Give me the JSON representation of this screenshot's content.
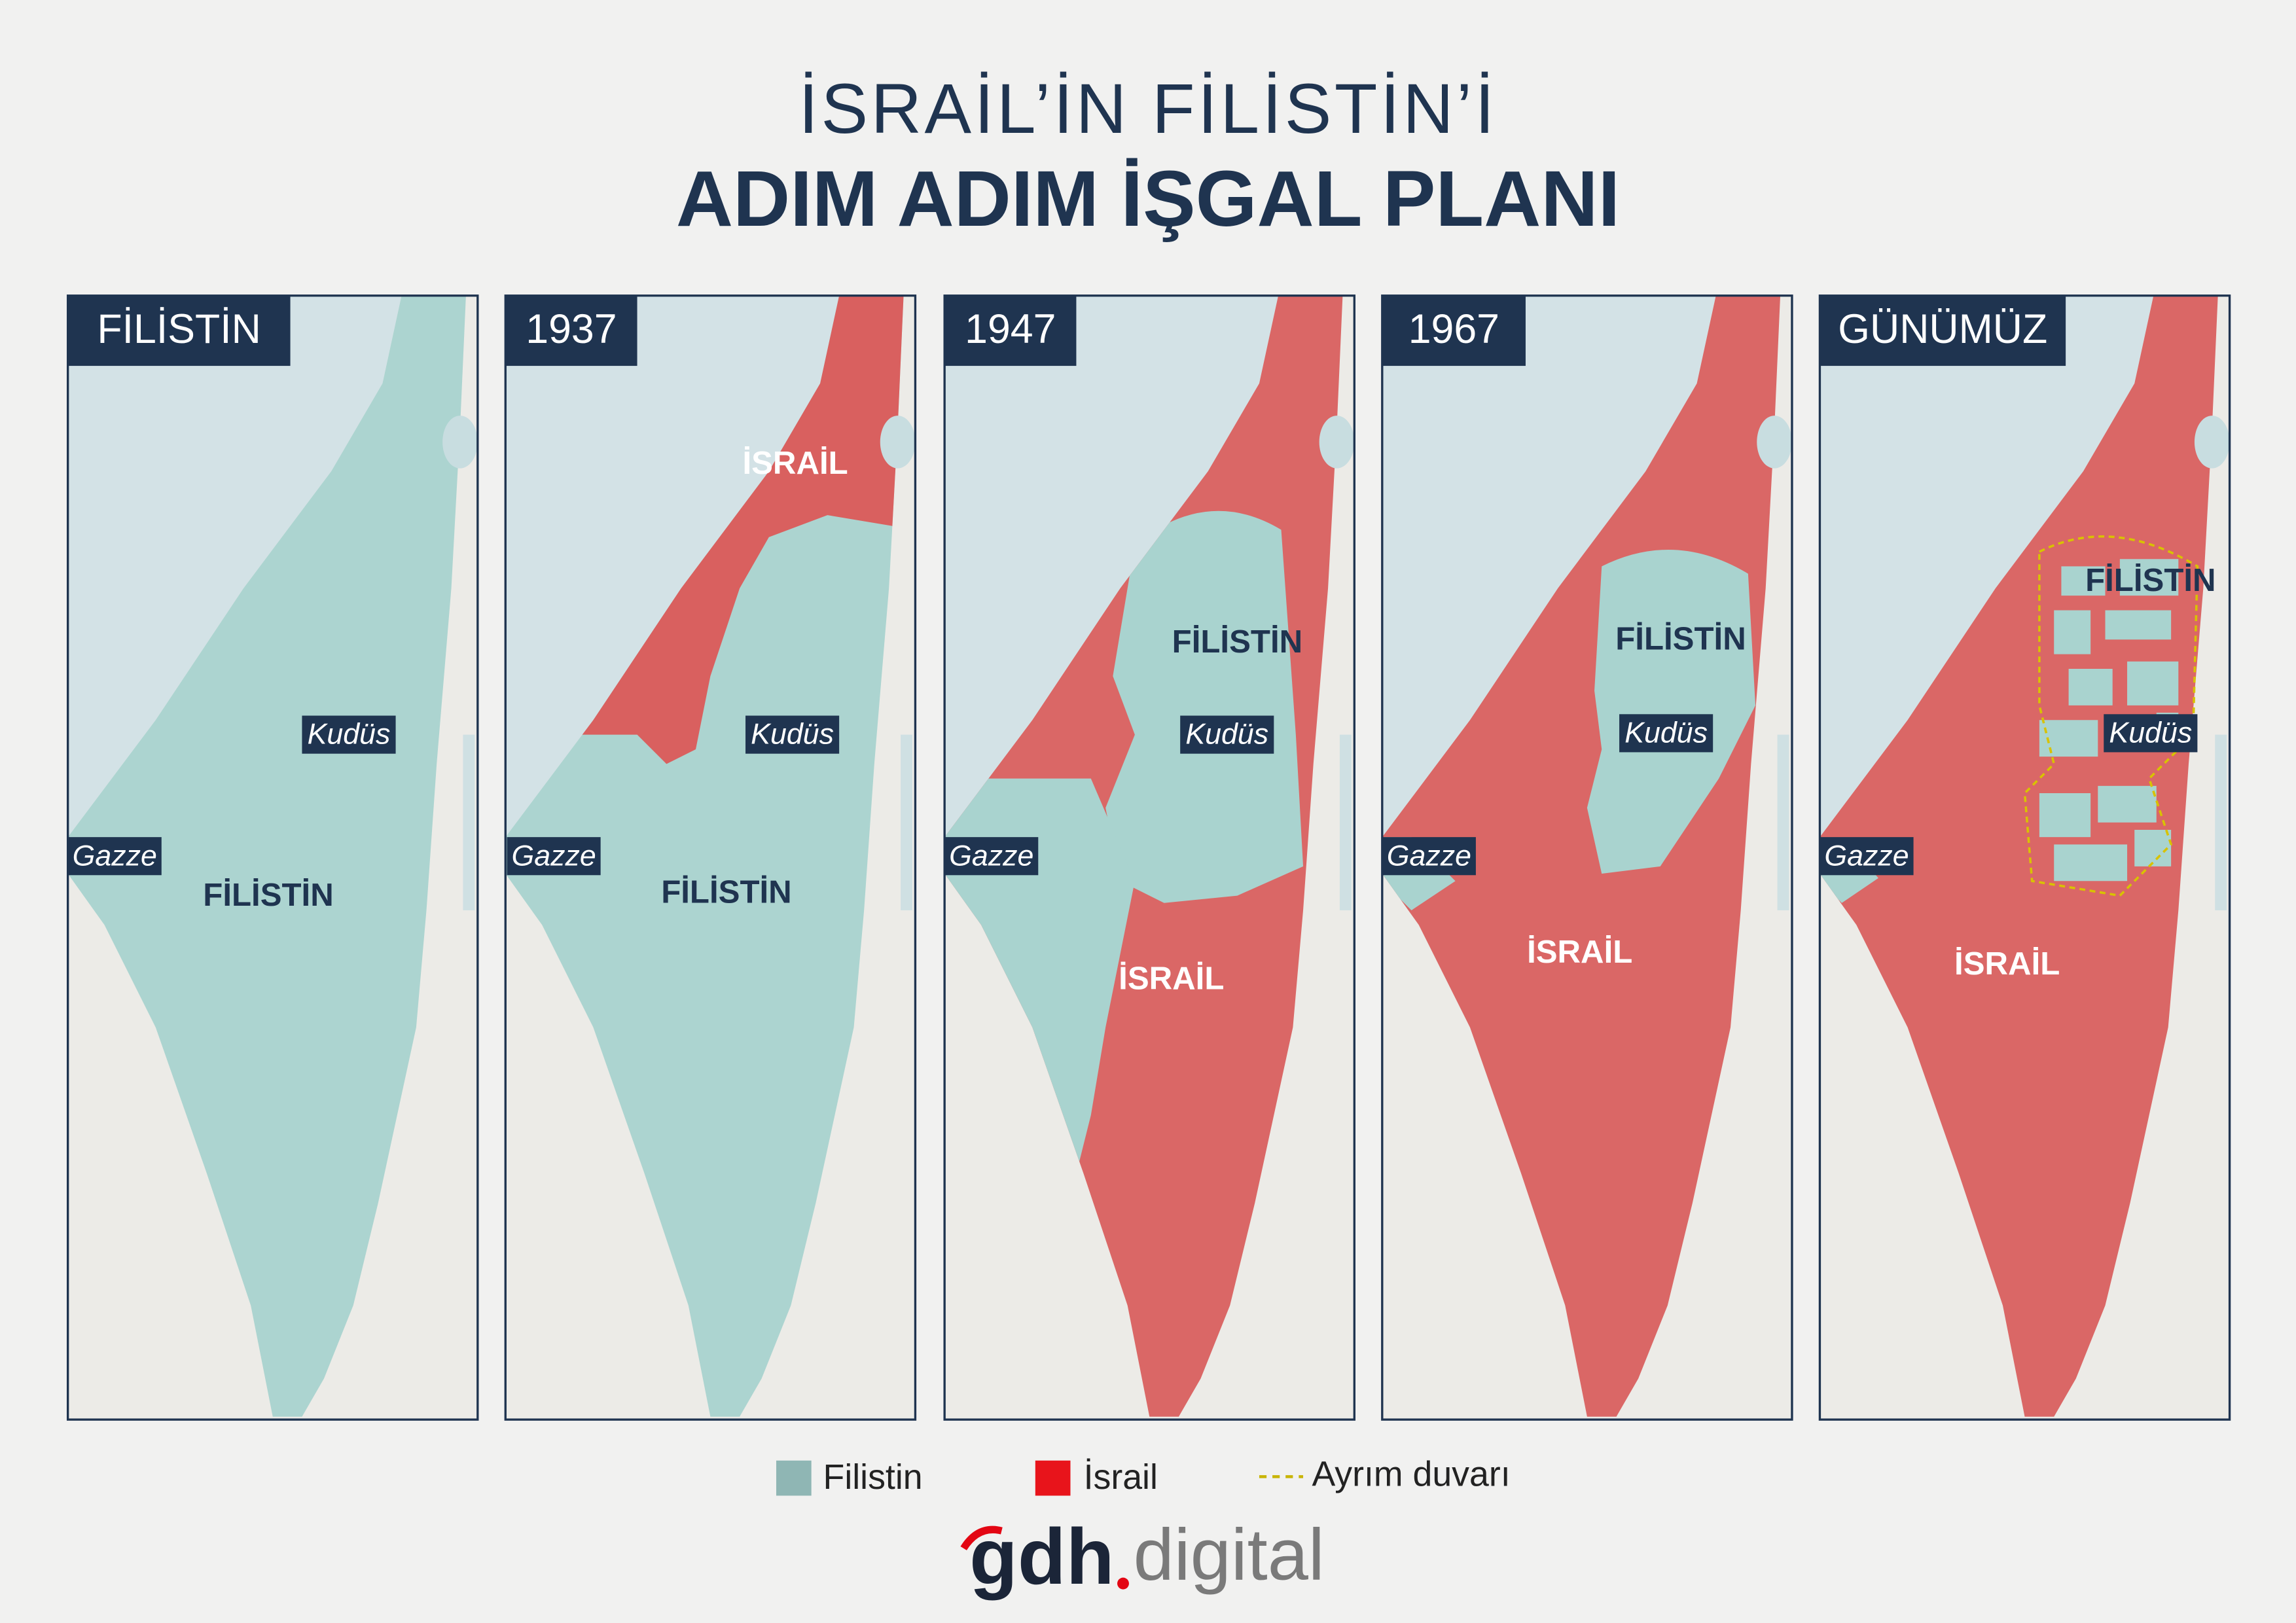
{
  "title": {
    "line1": "İSRAİL’İN FİLİSTİN’İ",
    "line2": "ADIM ADIM İŞGAL PLANI"
  },
  "panels": [
    {
      "label": "FİLİSTİN",
      "regions": [
        "FİLİSTİN",
        "Kudüs",
        "Gazze"
      ]
    },
    {
      "label": "1937",
      "regions": [
        "İSRAİL",
        "FİLİSTİN",
        "Kudüs",
        "Gazze"
      ]
    },
    {
      "label": "1947",
      "regions": [
        "FİLİSTİN",
        "İSRAİL",
        "Kudüs",
        "Gazze"
      ]
    },
    {
      "label": "1967",
      "regions": [
        "FİLİSTİN",
        "İSRAİL",
        "Kudüs",
        "Gazze"
      ]
    },
    {
      "label": "GÜNÜMÜZ",
      "regions": [
        "FİLİSTİN",
        "İSRAİL",
        "Kudüs",
        "Gazze"
      ]
    }
  ],
  "legend": [
    "Filistin",
    "İsrail",
    "Ayrım duvarı"
  ],
  "logo": {
    "brand": "gdh",
    "suffix": "digital"
  }
}
